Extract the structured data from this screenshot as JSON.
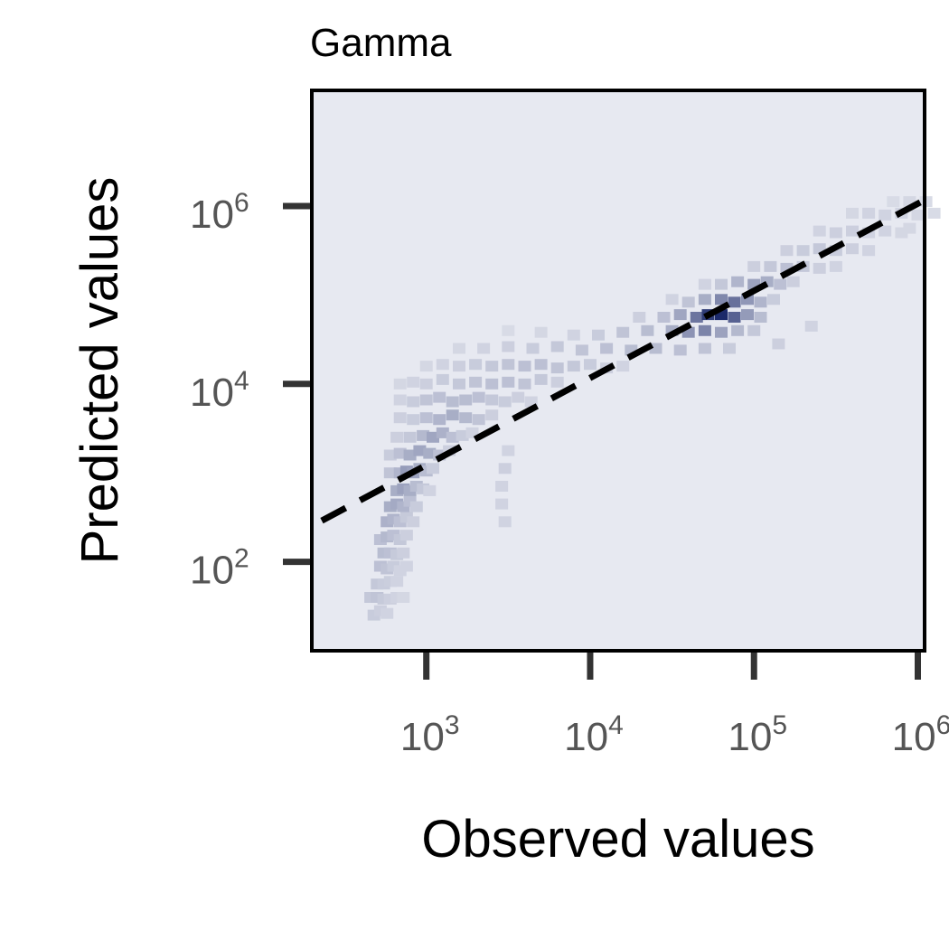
{
  "chart_data": {
    "type": "heatmap",
    "title": "Gamma",
    "xlabel": "Observed values",
    "ylabel": "Predicted values",
    "x_scale": "log",
    "y_scale": "log",
    "xlim": [
      200,
      1100000
    ],
    "ylim": [
      10,
      20000000
    ],
    "x_ticks": [
      {
        "value": 1000,
        "base": "10",
        "exp": "3"
      },
      {
        "value": 10000,
        "base": "10",
        "exp": "4"
      },
      {
        "value": 100000,
        "base": "10",
        "exp": "5"
      },
      {
        "value": 1000000,
        "base": "10",
        "exp": "6"
      }
    ],
    "y_ticks": [
      {
        "value": 100,
        "base": "10",
        "exp": "2"
      },
      {
        "value": 10000,
        "base": "10",
        "exp": "4"
      },
      {
        "value": 1000000,
        "base": "10",
        "exp": "6"
      }
    ],
    "reference_line": {
      "style": "dashed",
      "color": "#000000",
      "x": [
        230,
        1100000
      ],
      "y": [
        290,
        1170000
      ]
    },
    "colormap": {
      "low": "#e4e6ee",
      "high": "#1c2a6a",
      "background": "#e7e9f1"
    },
    "grid": false,
    "legend": "none",
    "series": [
      {
        "type": "density_bins",
        "columns": [
          "log10_observed",
          "log10_predicted",
          "density"
        ],
        "bins": [
          [
            2.68,
            1.4,
            0.14
          ],
          [
            2.72,
            1.45,
            0.12
          ],
          [
            2.76,
            1.42,
            0.1
          ],
          [
            2.66,
            1.6,
            0.16
          ],
          [
            2.7,
            1.6,
            0.18
          ],
          [
            2.74,
            1.58,
            0.15
          ],
          [
            2.78,
            1.58,
            0.12
          ],
          [
            2.82,
            1.6,
            0.1
          ],
          [
            2.86,
            1.6,
            0.08
          ],
          [
            2.7,
            1.75,
            0.16
          ],
          [
            2.74,
            1.75,
            0.14
          ],
          [
            2.78,
            1.78,
            0.13
          ],
          [
            2.82,
            1.78,
            0.1
          ],
          [
            2.72,
            1.95,
            0.2
          ],
          [
            2.76,
            1.92,
            0.18
          ],
          [
            2.8,
            1.95,
            0.14
          ],
          [
            2.84,
            1.9,
            0.1
          ],
          [
            2.88,
            1.95,
            0.1
          ],
          [
            2.74,
            2.1,
            0.22
          ],
          [
            2.78,
            2.1,
            0.2
          ],
          [
            2.82,
            2.08,
            0.15
          ],
          [
            2.86,
            2.1,
            0.12
          ],
          [
            2.72,
            2.25,
            0.2
          ],
          [
            2.76,
            2.28,
            0.24
          ],
          [
            2.8,
            2.3,
            0.2
          ],
          [
            2.84,
            2.25,
            0.16
          ],
          [
            2.88,
            2.3,
            0.12
          ],
          [
            2.76,
            2.45,
            0.28
          ],
          [
            2.8,
            2.48,
            0.26
          ],
          [
            2.84,
            2.45,
            0.2
          ],
          [
            2.88,
            2.5,
            0.15
          ],
          [
            2.92,
            2.45,
            0.12
          ],
          [
            2.78,
            2.62,
            0.3
          ],
          [
            2.82,
            2.65,
            0.32
          ],
          [
            2.86,
            2.62,
            0.26
          ],
          [
            2.9,
            2.68,
            0.2
          ],
          [
            2.94,
            2.62,
            0.14
          ],
          [
            2.82,
            2.8,
            0.3
          ],
          [
            2.86,
            2.82,
            0.36
          ],
          [
            2.9,
            2.8,
            0.3
          ],
          [
            2.94,
            2.85,
            0.22
          ],
          [
            2.98,
            2.82,
            0.16
          ],
          [
            3.02,
            2.8,
            0.1
          ],
          [
            2.78,
            3.0,
            0.18
          ],
          [
            2.84,
            3.0,
            0.26
          ],
          [
            2.88,
            3.02,
            0.4
          ],
          [
            2.92,
            3.0,
            0.36
          ],
          [
            2.96,
            3.05,
            0.3
          ],
          [
            3.0,
            3.02,
            0.22
          ],
          [
            3.04,
            3.05,
            0.14
          ],
          [
            2.78,
            3.2,
            0.14
          ],
          [
            2.84,
            3.22,
            0.2
          ],
          [
            2.9,
            3.2,
            0.3
          ],
          [
            2.96,
            3.25,
            0.34
          ],
          [
            3.02,
            3.22,
            0.3
          ],
          [
            3.08,
            3.2,
            0.2
          ],
          [
            3.14,
            3.25,
            0.12
          ],
          [
            2.82,
            3.4,
            0.12
          ],
          [
            2.9,
            3.4,
            0.16
          ],
          [
            2.98,
            3.42,
            0.24
          ],
          [
            3.04,
            3.4,
            0.34
          ],
          [
            3.1,
            3.45,
            0.28
          ],
          [
            3.16,
            3.4,
            0.2
          ],
          [
            3.22,
            3.42,
            0.14
          ],
          [
            3.28,
            3.45,
            0.1
          ],
          [
            2.84,
            3.62,
            0.12
          ],
          [
            2.92,
            3.6,
            0.14
          ],
          [
            3.0,
            3.62,
            0.2
          ],
          [
            3.08,
            3.6,
            0.26
          ],
          [
            3.16,
            3.65,
            0.3
          ],
          [
            3.24,
            3.62,
            0.24
          ],
          [
            3.32,
            3.6,
            0.18
          ],
          [
            3.4,
            3.65,
            0.12
          ],
          [
            2.84,
            3.82,
            0.1
          ],
          [
            2.92,
            3.8,
            0.14
          ],
          [
            3.0,
            3.82,
            0.18
          ],
          [
            3.08,
            3.85,
            0.2
          ],
          [
            3.16,
            3.8,
            0.22
          ],
          [
            3.24,
            3.82,
            0.22
          ],
          [
            3.32,
            3.85,
            0.2
          ],
          [
            3.4,
            3.82,
            0.16
          ],
          [
            3.48,
            3.8,
            0.14
          ],
          [
            3.56,
            3.85,
            0.12
          ],
          [
            3.64,
            3.8,
            0.1
          ],
          [
            2.84,
            4.0,
            0.08
          ],
          [
            2.92,
            4.02,
            0.1
          ],
          [
            3.0,
            4.0,
            0.12
          ],
          [
            3.1,
            4.05,
            0.14
          ],
          [
            3.2,
            4.0,
            0.16
          ],
          [
            3.3,
            4.02,
            0.18
          ],
          [
            3.4,
            4.0,
            0.2
          ],
          [
            3.5,
            4.02,
            0.2
          ],
          [
            3.6,
            4.0,
            0.18
          ],
          [
            3.7,
            4.05,
            0.16
          ],
          [
            3.8,
            4.02,
            0.12
          ],
          [
            3.0,
            4.2,
            0.08
          ],
          [
            3.1,
            4.22,
            0.1
          ],
          [
            3.2,
            4.2,
            0.12
          ],
          [
            3.3,
            4.22,
            0.14
          ],
          [
            3.4,
            4.2,
            0.16
          ],
          [
            3.5,
            4.22,
            0.18
          ],
          [
            3.6,
            4.2,
            0.2
          ],
          [
            3.7,
            4.22,
            0.2
          ],
          [
            3.8,
            4.18,
            0.18
          ],
          [
            3.9,
            4.2,
            0.16
          ],
          [
            4.0,
            4.22,
            0.14
          ],
          [
            4.1,
            4.18,
            0.12
          ],
          [
            4.2,
            4.2,
            0.1
          ],
          [
            3.2,
            4.4,
            0.08
          ],
          [
            3.35,
            4.4,
            0.1
          ],
          [
            3.5,
            4.42,
            0.12
          ],
          [
            3.65,
            4.4,
            0.14
          ],
          [
            3.8,
            4.42,
            0.16
          ],
          [
            3.95,
            4.38,
            0.18
          ],
          [
            4.1,
            4.4,
            0.2
          ],
          [
            4.25,
            4.38,
            0.22
          ],
          [
            4.4,
            4.4,
            0.22
          ],
          [
            4.55,
            4.38,
            0.2
          ],
          [
            4.7,
            4.4,
            0.18
          ],
          [
            4.85,
            4.4,
            0.14
          ],
          [
            3.5,
            4.6,
            0.06
          ],
          [
            3.7,
            4.58,
            0.08
          ],
          [
            3.9,
            4.55,
            0.1
          ],
          [
            4.05,
            4.55,
            0.14
          ],
          [
            4.2,
            4.58,
            0.18
          ],
          [
            4.35,
            4.6,
            0.22
          ],
          [
            4.5,
            4.6,
            0.3
          ],
          [
            4.6,
            4.58,
            0.44
          ],
          [
            4.7,
            4.6,
            0.52
          ],
          [
            4.8,
            4.58,
            0.36
          ],
          [
            4.9,
            4.6,
            0.24
          ],
          [
            5.0,
            4.6,
            0.16
          ],
          [
            4.3,
            4.75,
            0.12
          ],
          [
            4.45,
            4.75,
            0.2
          ],
          [
            4.55,
            4.78,
            0.34
          ],
          [
            4.65,
            4.75,
            0.6
          ],
          [
            4.72,
            4.78,
            0.9
          ],
          [
            4.8,
            4.78,
            1.0
          ],
          [
            4.88,
            4.75,
            0.7
          ],
          [
            4.96,
            4.78,
            0.4
          ],
          [
            5.04,
            4.75,
            0.22
          ],
          [
            4.5,
            4.95,
            0.1
          ],
          [
            4.6,
            4.92,
            0.18
          ],
          [
            4.7,
            4.95,
            0.3
          ],
          [
            4.8,
            4.95,
            0.5
          ],
          [
            4.88,
            4.92,
            0.62
          ],
          [
            4.96,
            4.95,
            0.42
          ],
          [
            5.04,
            4.92,
            0.26
          ],
          [
            5.12,
            4.95,
            0.14
          ],
          [
            4.7,
            5.12,
            0.1
          ],
          [
            4.8,
            5.12,
            0.16
          ],
          [
            4.9,
            5.15,
            0.26
          ],
          [
            5.0,
            5.12,
            0.36
          ],
          [
            5.08,
            5.15,
            0.3
          ],
          [
            5.16,
            5.12,
            0.2
          ],
          [
            5.24,
            5.15,
            0.12
          ],
          [
            5.0,
            5.32,
            0.12
          ],
          [
            5.1,
            5.32,
            0.16
          ],
          [
            5.2,
            5.3,
            0.2
          ],
          [
            5.3,
            5.32,
            0.16
          ],
          [
            5.4,
            5.3,
            0.12
          ],
          [
            5.5,
            5.32,
            0.1
          ],
          [
            5.2,
            5.5,
            0.12
          ],
          [
            5.3,
            5.5,
            0.14
          ],
          [
            5.4,
            5.52,
            0.16
          ],
          [
            5.5,
            5.5,
            0.14
          ],
          [
            5.6,
            5.52,
            0.12
          ],
          [
            5.7,
            5.5,
            0.1
          ],
          [
            5.4,
            5.72,
            0.1
          ],
          [
            5.5,
            5.7,
            0.12
          ],
          [
            5.6,
            5.72,
            0.12
          ],
          [
            5.7,
            5.7,
            0.1
          ],
          [
            5.8,
            5.72,
            0.1
          ],
          [
            5.9,
            5.7,
            0.08
          ],
          [
            5.6,
            5.92,
            0.08
          ],
          [
            5.7,
            5.92,
            0.1
          ],
          [
            5.8,
            5.9,
            0.1
          ],
          [
            5.9,
            5.92,
            0.1
          ],
          [
            6.0,
            5.9,
            0.08
          ],
          [
            6.1,
            5.92,
            0.06
          ],
          [
            5.85,
            6.05,
            0.06
          ],
          [
            5.95,
            6.05,
            0.08
          ],
          [
            6.05,
            6.05,
            0.06
          ],
          [
            3.5,
            3.25,
            0.1
          ],
          [
            3.48,
            3.05,
            0.12
          ],
          [
            3.46,
            2.85,
            0.1
          ],
          [
            3.46,
            2.65,
            0.1
          ],
          [
            3.48,
            2.45,
            0.1
          ],
          [
            5.15,
            4.45,
            0.12
          ],
          [
            5.35,
            4.65,
            0.1
          ],
          [
            5.95,
            5.75,
            0.08
          ]
        ]
      }
    ]
  }
}
